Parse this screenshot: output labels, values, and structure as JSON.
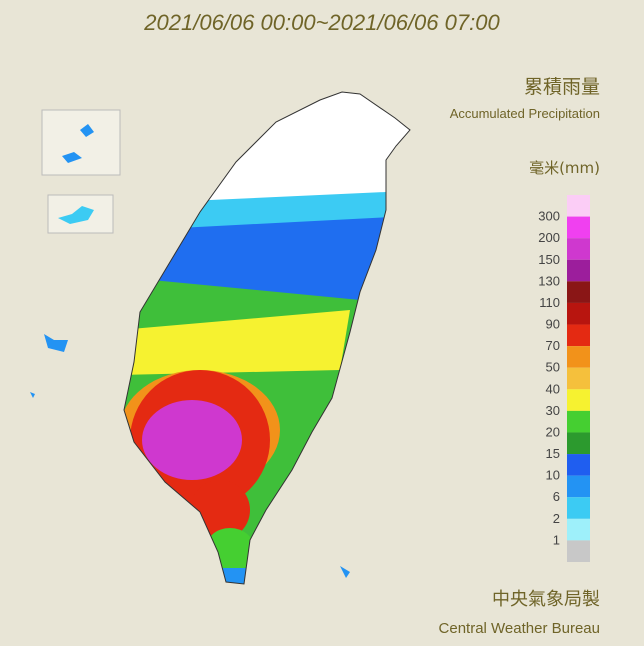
{
  "header": {
    "title": "2021/06/06 00:00~2021/06/06 07:00"
  },
  "legend": {
    "title": "累積雨量",
    "subtitle": "Accumulated Precipitation",
    "unit": "毫米(mm)",
    "colors": [
      "#fbcdf6",
      "#f040f0",
      "#cf38cf",
      "#9c1e9c",
      "#8a1616",
      "#b8150f",
      "#e42a12",
      "#f2921a",
      "#f5c03c",
      "#f6f230",
      "#45cf31",
      "#2c9a2e",
      "#1f5ef0",
      "#2393f3",
      "#3ccbf3",
      "#9ef0fa",
      "#c8c8c8"
    ],
    "labels": [
      "300",
      "200",
      "150",
      "130",
      "110",
      "90",
      "70",
      "50",
      "40",
      "30",
      "20",
      "15",
      "10",
      "6",
      "2",
      "1"
    ]
  },
  "footer": {
    "zh": "中央氣象局製",
    "en": "Central Weather Bureau"
  }
}
